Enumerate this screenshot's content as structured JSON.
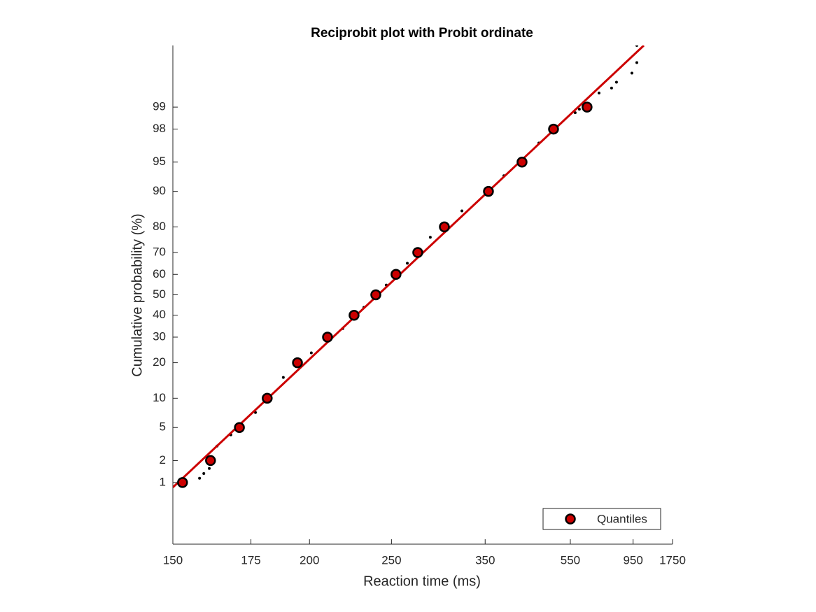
{
  "chart_data": {
    "type": "scatter",
    "title": "Reciprobit plot with Probit ordinate",
    "x_label": "Reaction time (ms)",
    "y_label": "Cumulative probability (%)",
    "xscale": "reciprocal",
    "yscale": "probit",
    "xlim": [
      150,
      1750
    ],
    "xticks": [
      150,
      175,
      200,
      250,
      350,
      550,
      950,
      1750
    ],
    "ylim": [
      0.1,
      99.9
    ],
    "yticks": [
      1,
      2,
      5,
      10,
      20,
      30,
      40,
      50,
      60,
      70,
      80,
      90,
      95,
      98,
      99
    ],
    "legend_position": "lower right",
    "raw": {
      "color": "#000000",
      "x": [
        157.7,
        159.0,
        160.7,
        163.2,
        167.8,
        176.7,
        188.0,
        200.9,
        217.7,
        230.6,
        246.1,
        262.7,
        283.6,
        318.4,
        380.4,
        454.1,
        568.5,
        585.5,
        681.2,
        760.5,
        796.8,
        937.2,
        993,
        993
      ],
      "y": [
        1.15,
        1.34,
        1.57,
        3.04,
        4.13,
        7.24,
        15.3,
        23.6,
        33.8,
        43.8,
        54.8,
        65.2,
        76.2,
        85.1,
        93.0,
        97.0,
        98.8,
        98.93,
        99.38,
        99.48,
        99.58,
        99.7,
        99.8,
        99.9
      ]
    },
    "fit": {
      "color": "#cc0000",
      "x": [
        150,
        1085
      ],
      "y": [
        0.85,
        99.9
      ]
    },
    "series": [
      {
        "name": "Quantiles",
        "color": "#cc0000",
        "x": [
          152.7,
          161.1,
          170.8,
          181.3,
          194.3,
          209.2,
          224.4,
          238.6,
          253.5,
          271.8,
          298.1,
          355.0,
          415.4,
          494.3,
          619.6
        ],
        "values": [
          1,
          2,
          5,
          10,
          20,
          30,
          40,
          50,
          60,
          70,
          80,
          90,
          95,
          98,
          99
        ]
      }
    ]
  }
}
